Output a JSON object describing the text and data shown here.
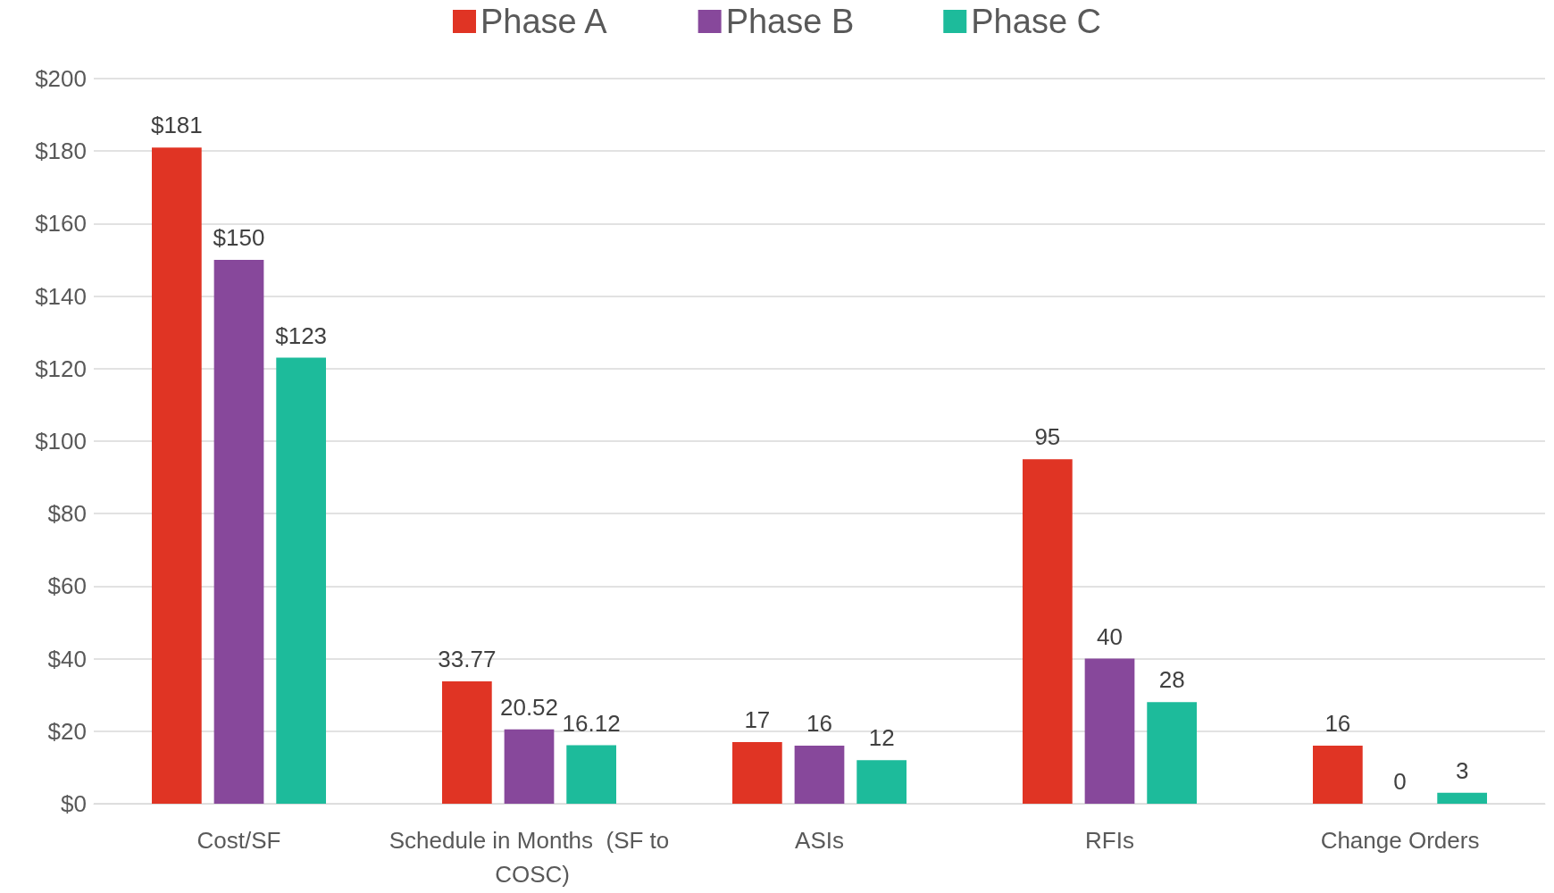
{
  "chart_data": {
    "type": "bar",
    "categories": [
      "Cost/SF",
      "Schedule in Months  (SF to COSC)",
      "ASIs",
      "RFIs",
      "Change Orders"
    ],
    "series": [
      {
        "name": "Phase A",
        "color": "#e03424",
        "values": [
          181,
          33.77,
          17,
          95,
          16
        ],
        "value_labels": [
          "$181",
          "33.77",
          "17",
          "95",
          "16"
        ]
      },
      {
        "name": "Phase B",
        "color": "#87489b",
        "values": [
          150,
          20.52,
          16,
          40,
          0
        ],
        "value_labels": [
          "$150",
          "20.52",
          "16",
          "40",
          "0"
        ]
      },
      {
        "name": "Phase C",
        "color": "#1dbb9b",
        "values": [
          123,
          16.12,
          12,
          28,
          3
        ],
        "value_labels": [
          "$123",
          "16.12",
          "12",
          "28",
          "3"
        ]
      }
    ],
    "ylim": [
      0,
      200
    ],
    "yticks": [
      {
        "value": 0,
        "label": "$0"
      },
      {
        "value": 20,
        "label": "$20"
      },
      {
        "value": 40,
        "label": "$40"
      },
      {
        "value": 60,
        "label": "$60"
      },
      {
        "value": 80,
        "label": "$80"
      },
      {
        "value": 100,
        "label": "$100"
      },
      {
        "value": 120,
        "label": "$120"
      },
      {
        "value": 140,
        "label": "$140"
      },
      {
        "value": 160,
        "label": "$160"
      },
      {
        "value": 180,
        "label": "$180"
      },
      {
        "value": 200,
        "label": "$200"
      }
    ],
    "grid": "y",
    "legend": "top"
  }
}
